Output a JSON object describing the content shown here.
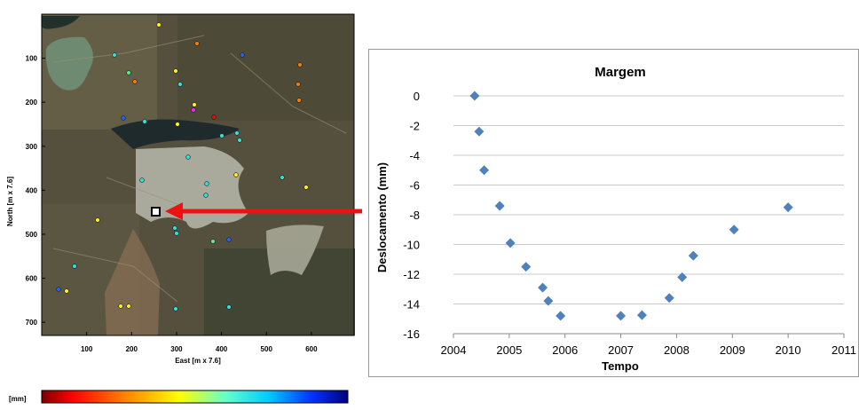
{
  "map_figure": {
    "ylabel": "North [m x 7.6]",
    "xlabel": "East [m x 7.6]",
    "yticks": [
      100,
      200,
      300,
      400,
      500,
      600,
      700
    ],
    "xticks": [
      100,
      200,
      300,
      400,
      500,
      600
    ],
    "colorbar_label": "[mm]",
    "colorbar_colors": [
      "#7a0000",
      "#ff0000",
      "#ff8800",
      "#ffff00",
      "#66ffcc",
      "#00ccff",
      "#0033ff",
      "#00007a"
    ],
    "marker_colors": {
      "blue": "#1e64ff",
      "cyan": "#33e0d8",
      "green": "#55ee88",
      "yellow": "#ffee22",
      "orange": "#ff7a00",
      "red": "#d81010",
      "magenta": "#ff22ff"
    },
    "arrow_color": "#ee1111"
  },
  "chart_data": {
    "type": "scatter",
    "title": "Margem",
    "xlabel": "Tempo",
    "ylabel": "Deslocamento (mm)",
    "xlim": [
      2004,
      2011
    ],
    "ylim": [
      -16,
      0
    ],
    "xticks": [
      2004,
      2005,
      2006,
      2007,
      2008,
      2009,
      2010,
      2011
    ],
    "yticks": [
      0,
      -2,
      -4,
      -6,
      -8,
      -10,
      -12,
      -14,
      -16
    ],
    "grid": true,
    "marker": "diamond",
    "marker_color": "#4f81bd",
    "series": [
      {
        "x": [
          2004.38,
          2004.46,
          2004.55,
          2004.83,
          2005.02,
          2005.3,
          2005.6,
          2005.7,
          2005.92,
          2007.0,
          2007.38,
          2007.87,
          2008.1,
          2008.3,
          2009.03,
          2010.0
        ],
        "y": [
          0,
          -2.4,
          -5.0,
          -7.4,
          -9.9,
          -11.5,
          -12.9,
          -13.8,
          -14.8,
          -14.8,
          -14.75,
          -13.6,
          -12.2,
          -10.75,
          -9.0,
          -7.5
        ]
      }
    ]
  }
}
